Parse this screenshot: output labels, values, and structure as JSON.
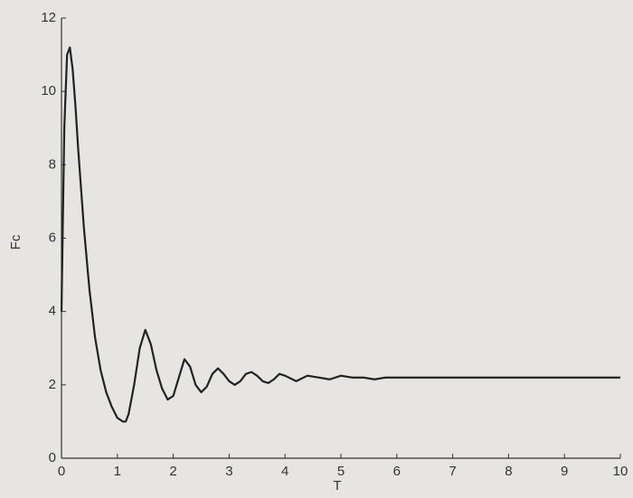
{
  "chart_data": {
    "type": "line",
    "x_label": "T",
    "y_label": "Fc",
    "xlim": [
      0,
      10
    ],
    "ylim": [
      0,
      12
    ],
    "xticks": [
      0,
      1,
      2,
      3,
      4,
      5,
      6,
      7,
      8,
      9,
      10
    ],
    "yticks": [
      0,
      2,
      4,
      6,
      8,
      10,
      12
    ],
    "series": [
      {
        "color": "#222222",
        "x": [
          0,
          0.05,
          0.1,
          0.15,
          0.2,
          0.25,
          0.3,
          0.4,
          0.5,
          0.6,
          0.7,
          0.8,
          0.9,
          1.0,
          1.1,
          1.15,
          1.2,
          1.3,
          1.4,
          1.5,
          1.6,
          1.7,
          1.8,
          1.9,
          2.0,
          2.1,
          2.2,
          2.3,
          2.4,
          2.5,
          2.6,
          2.7,
          2.8,
          2.9,
          3.0,
          3.1,
          3.2,
          3.3,
          3.4,
          3.5,
          3.6,
          3.7,
          3.8,
          3.9,
          4.0,
          4.2,
          4.4,
          4.6,
          4.8,
          5.0,
          5.2,
          5.4,
          5.6,
          5.8,
          6.0,
          6.5,
          7,
          7.5,
          8,
          8.5,
          9,
          9.5,
          10
        ],
        "values": [
          4.0,
          9.0,
          11.0,
          11.2,
          10.6,
          9.6,
          8.4,
          6.3,
          4.6,
          3.3,
          2.4,
          1.8,
          1.4,
          1.1,
          1.0,
          1.0,
          1.2,
          2.0,
          3.0,
          3.5,
          3.1,
          2.4,
          1.9,
          1.6,
          1.7,
          2.2,
          2.7,
          2.5,
          2.0,
          1.8,
          1.95,
          2.3,
          2.45,
          2.3,
          2.1,
          2.0,
          2.1,
          2.3,
          2.35,
          2.25,
          2.1,
          2.05,
          2.15,
          2.3,
          2.25,
          2.1,
          2.25,
          2.2,
          2.15,
          2.25,
          2.2,
          2.2,
          2.15,
          2.2,
          2.2,
          2.2,
          2.2,
          2.2,
          2.2,
          2.2,
          2.2,
          2.2,
          2.2
        ]
      }
    ]
  }
}
